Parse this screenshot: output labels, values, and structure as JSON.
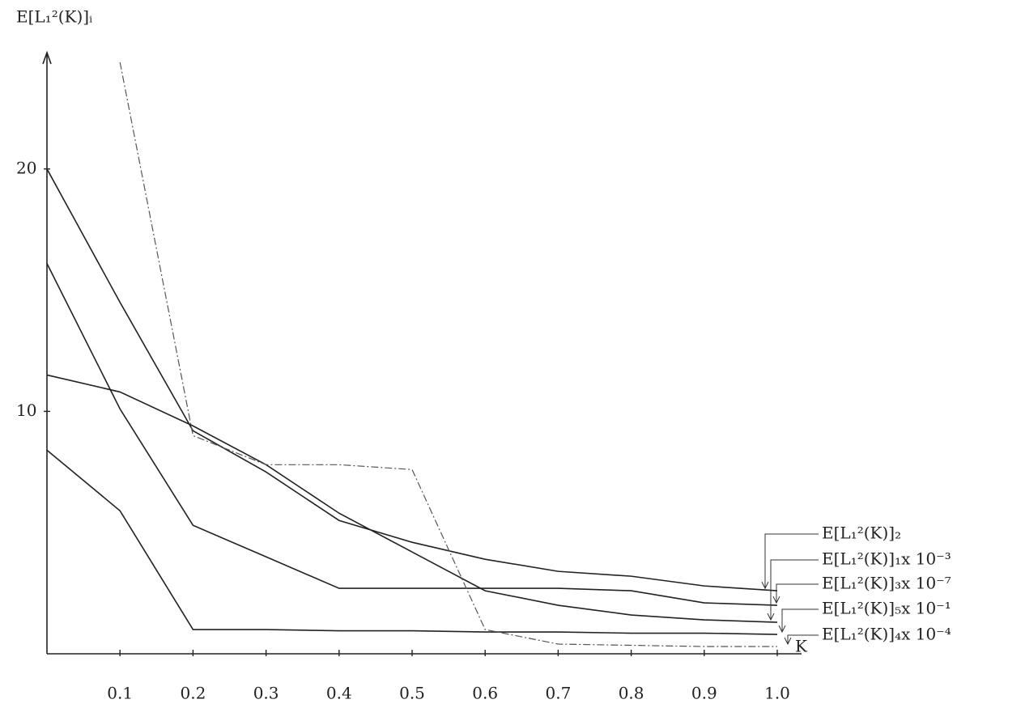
{
  "chart_data": {
    "type": "line",
    "y_label": "E[L₁²(K)]ᵢ",
    "x_label": "K",
    "x": [
      0,
      0.1,
      0.2,
      0.3,
      0.4,
      0.5,
      0.6,
      0.7,
      0.8,
      0.9,
      1.0
    ],
    "xlim": [
      0,
      1.0
    ],
    "ylim": [
      0,
      24.8
    ],
    "xticks": [
      0.1,
      0.2,
      0.3,
      0.4,
      0.5,
      0.6,
      0.7,
      0.8,
      0.9,
      {
        "value": 1.0,
        "label": "1.0"
      }
    ],
    "yticks": [
      10,
      20
    ],
    "series": [
      {
        "name": "E[L₁²(K)]₂",
        "color": "#222222",
        "values": [
          20,
          14.5,
          9.2,
          7.5,
          5.5,
          4.6,
          3.9,
          3.4,
          3.2,
          2.8,
          2.6
        ]
      },
      {
        "name": "E[L₁²(K)]₁x 10⁻³",
        "color": "#222222",
        "values": [
          11.5,
          10.8,
          9.4,
          7.8,
          5.8,
          4.2,
          2.6,
          2.0,
          1.6,
          1.4,
          1.3
        ]
      },
      {
        "name": "E[L₁²(K)]₃x 10⁻⁷",
        "color": "#222222",
        "values": [
          16.1,
          10.1,
          5.3,
          4.0,
          2.7,
          2.7,
          2.7,
          2.7,
          2.6,
          2.1,
          2.0
        ]
      },
      {
        "name": "E[L₁²(K)]₅x 10⁻¹",
        "color": "#222222",
        "values": [
          8.4,
          5.9,
          1.0,
          1.0,
          0.95,
          0.95,
          0.9,
          0.9,
          0.85,
          0.85,
          0.8
        ]
      },
      {
        "name": "E[L₁²(K)]₄x 10⁻⁴",
        "color": "#555555",
        "dashed": true,
        "values": [
          null,
          24.4,
          9.0,
          7.8,
          7.8,
          7.6,
          1.0,
          0.4,
          0.35,
          0.3,
          0.3
        ]
      }
    ]
  }
}
